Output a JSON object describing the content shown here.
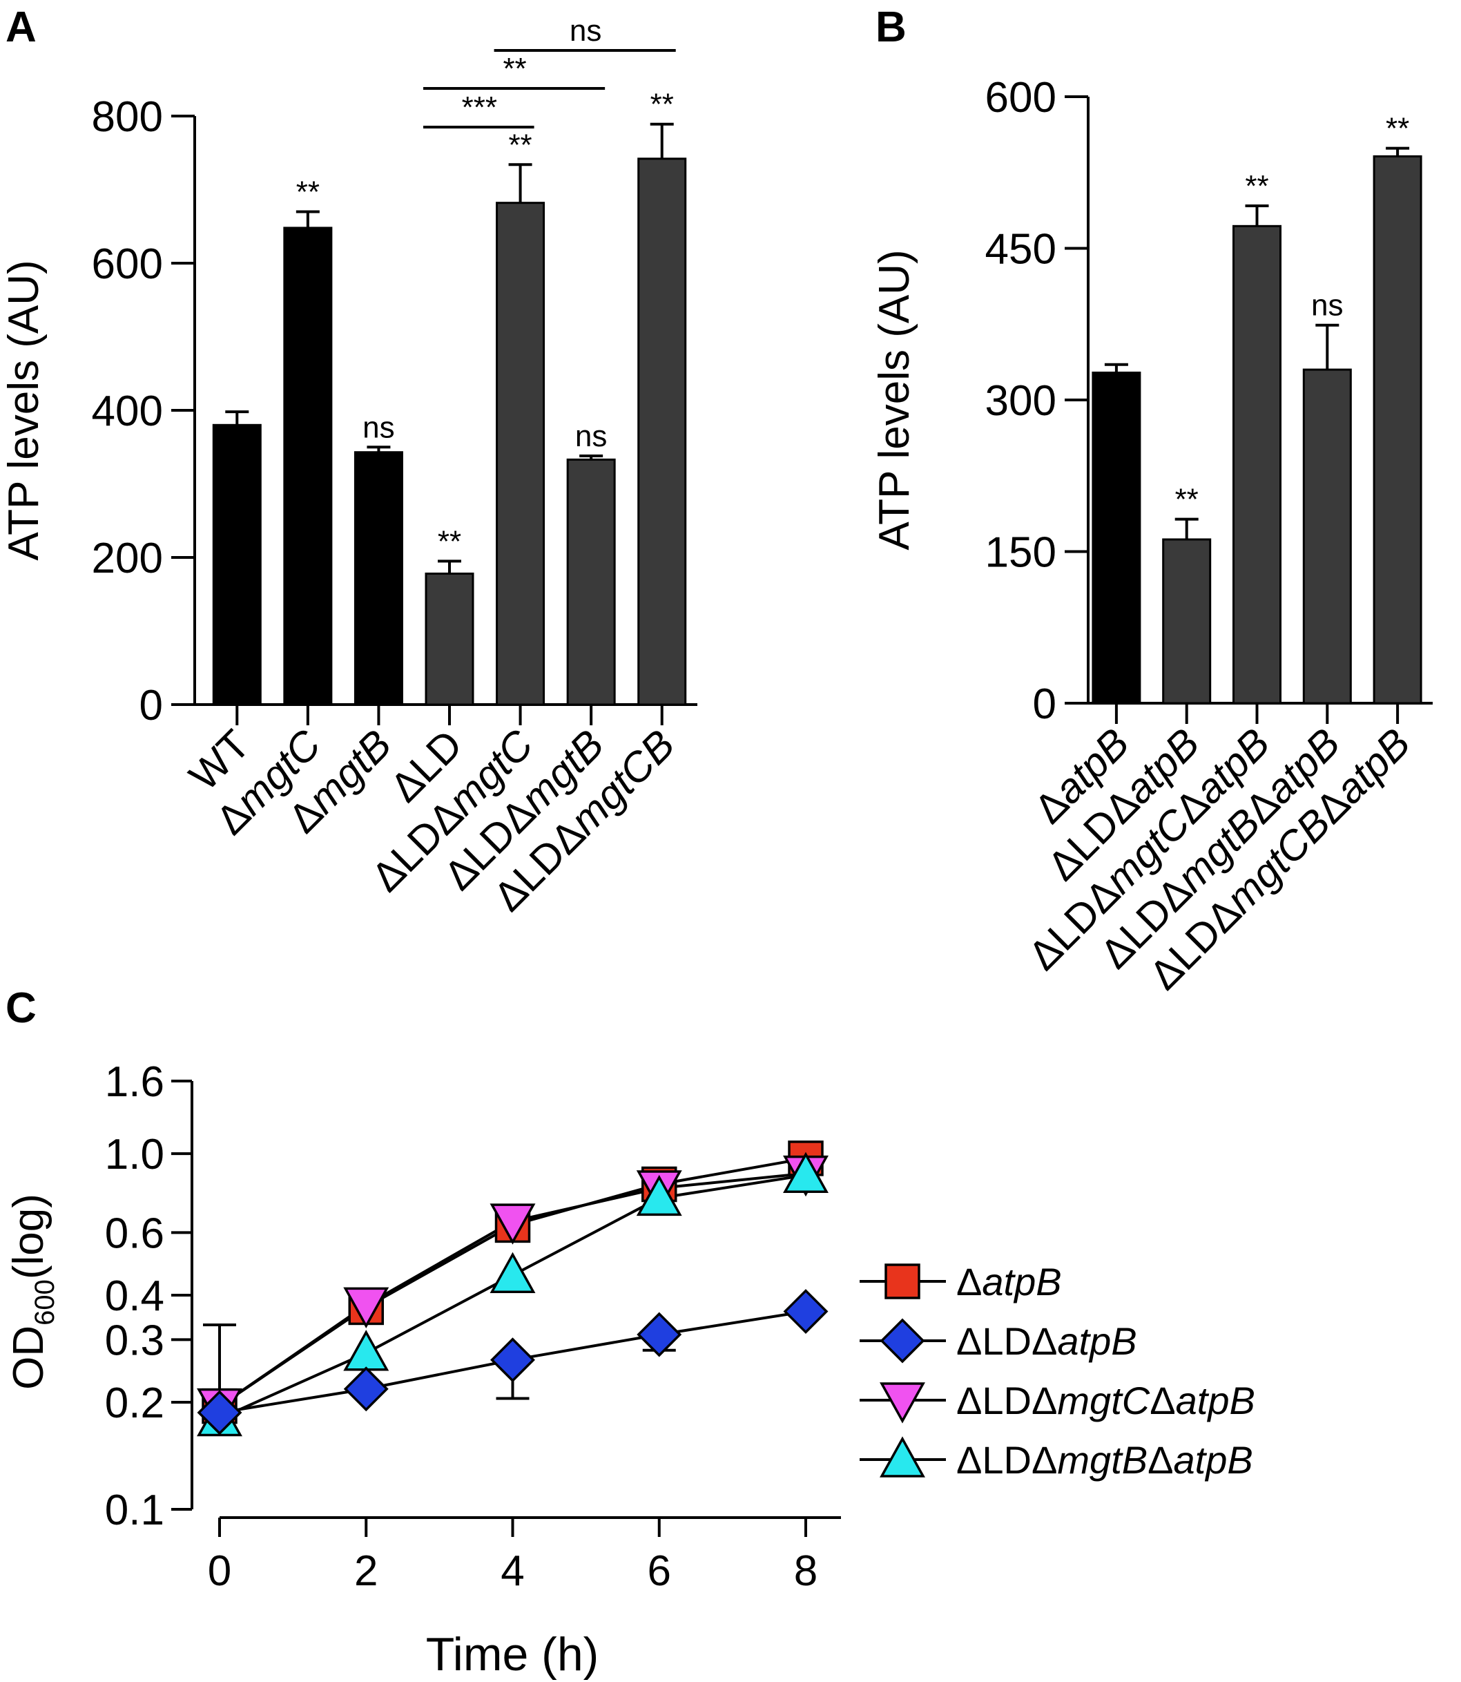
{
  "colors": {
    "black_bar": "#000000",
    "gray_bar": "#3a3a3a",
    "series": [
      "#e8341c",
      "#1f3fe0",
      "#f052f0",
      "#28e8ee"
    ]
  },
  "chart_data": [
    {
      "panel": "A",
      "type": "bar",
      "title": "",
      "ylabel": "ATP levels (AU)",
      "ylim": [
        0,
        800
      ],
      "yticks": [
        "0",
        "200",
        "400",
        "600",
        "800"
      ],
      "categories": [
        {
          "pre": "WT",
          "ital": ""
        },
        {
          "pre": "Δ",
          "ital": "mgtC"
        },
        {
          "pre": "Δ",
          "ital": "mgtB"
        },
        {
          "pre": "ΔLD",
          "ital": ""
        },
        {
          "pre": "ΔLDΔ",
          "ital": "mgtC"
        },
        {
          "pre": "ΔLDΔ",
          "ital": "mgtB"
        },
        {
          "pre": "ΔLDΔ",
          "ital": "mgtCB"
        }
      ],
      "values": [
        380,
        648,
        343,
        178,
        682,
        333,
        742
      ],
      "errors": [
        18,
        22,
        7,
        17,
        52,
        5,
        47
      ],
      "fill": [
        "black",
        "black",
        "black",
        "gray",
        "gray",
        "gray",
        "gray"
      ],
      "annotations": [
        "",
        "**",
        "ns",
        "**",
        "**",
        "ns",
        "**"
      ],
      "comparisons": [
        {
          "from": 3,
          "to": 4,
          "label": "***"
        },
        {
          "from": 3,
          "to": 5,
          "label": "**"
        },
        {
          "from": 4,
          "to": 6,
          "label": "ns"
        }
      ]
    },
    {
      "panel": "B",
      "type": "bar",
      "title": "",
      "ylabel": "ATP levels (AU)",
      "ylim": [
        0,
        600
      ],
      "yticks": [
        "0",
        "150",
        "300",
        "450",
        "600"
      ],
      "categories": [
        {
          "pre": "Δ",
          "ital": "atpB"
        },
        {
          "pre": "ΔLDΔ",
          "ital": "atpB"
        },
        {
          "pre": "ΔLDΔ",
          "ital": "mgtC",
          "pre2": "Δ",
          "ital2": "atpB"
        },
        {
          "pre": "ΔLDΔ",
          "ital": "mgtB",
          "pre2": "Δ",
          "ital2": "atpB"
        },
        {
          "pre": "ΔLDΔ",
          "ital": "mgtCB",
          "pre2": "Δ",
          "ital2": "atpB"
        }
      ],
      "values": [
        327,
        162,
        472,
        330,
        541
      ],
      "errors": [
        8,
        20,
        20,
        44,
        8
      ],
      "fill": [
        "black",
        "gray",
        "gray",
        "gray",
        "gray"
      ],
      "annotations": [
        "",
        "**",
        "**",
        "ns",
        "**"
      ]
    },
    {
      "panel": "C",
      "type": "line",
      "title": "",
      "xlabel": "Time (h)",
      "ylabel_main": "OD",
      "ylabel_sub": "600",
      "ylabel_suffix": "(log)",
      "yscale": "log",
      "ylim": [
        0.1,
        1.6
      ],
      "xlim": [
        0,
        8
      ],
      "xticks": [
        "0",
        "2",
        "4",
        "6",
        "8"
      ],
      "yticks": [
        "0.1",
        "0.2",
        "0.3",
        "0.4",
        "0.6",
        "1.0",
        "1.6"
      ],
      "ytick_values": [
        0.1,
        0.2,
        0.3,
        0.4,
        0.6,
        1.0,
        1.6
      ],
      "x": [
        0,
        2,
        4,
        6,
        8
      ],
      "series": [
        {
          "pre": "Δ",
          "ital": "atpB",
          "marker": "square",
          "color": "#e8341c",
          "values": [
            0.195,
            0.37,
            0.63,
            0.82,
            0.97
          ]
        },
        {
          "pre": "ΔLDΔ",
          "ital": "atpB",
          "marker": "diamond",
          "color": "#1f3fe0",
          "values": [
            0.187,
            0.218,
            0.263,
            0.31,
            0.36
          ]
        },
        {
          "pre": "ΔLDΔ",
          "ital": "mgtC",
          "pre2": "Δ",
          "ital2": "atpB",
          "marker": "triangle-down",
          "color": "#f052f0",
          "values": [
            0.195,
            0.375,
            0.645,
            0.8,
            0.88
          ]
        },
        {
          "pre": "ΔLDΔ",
          "ital": "mgtB",
          "pre2": "Δ",
          "ital2": "atpB",
          "marker": "triangle-up",
          "color": "#28e8ee",
          "values": [
            0.18,
            0.275,
            0.455,
            0.75,
            0.87
          ]
        }
      ]
    }
  ]
}
